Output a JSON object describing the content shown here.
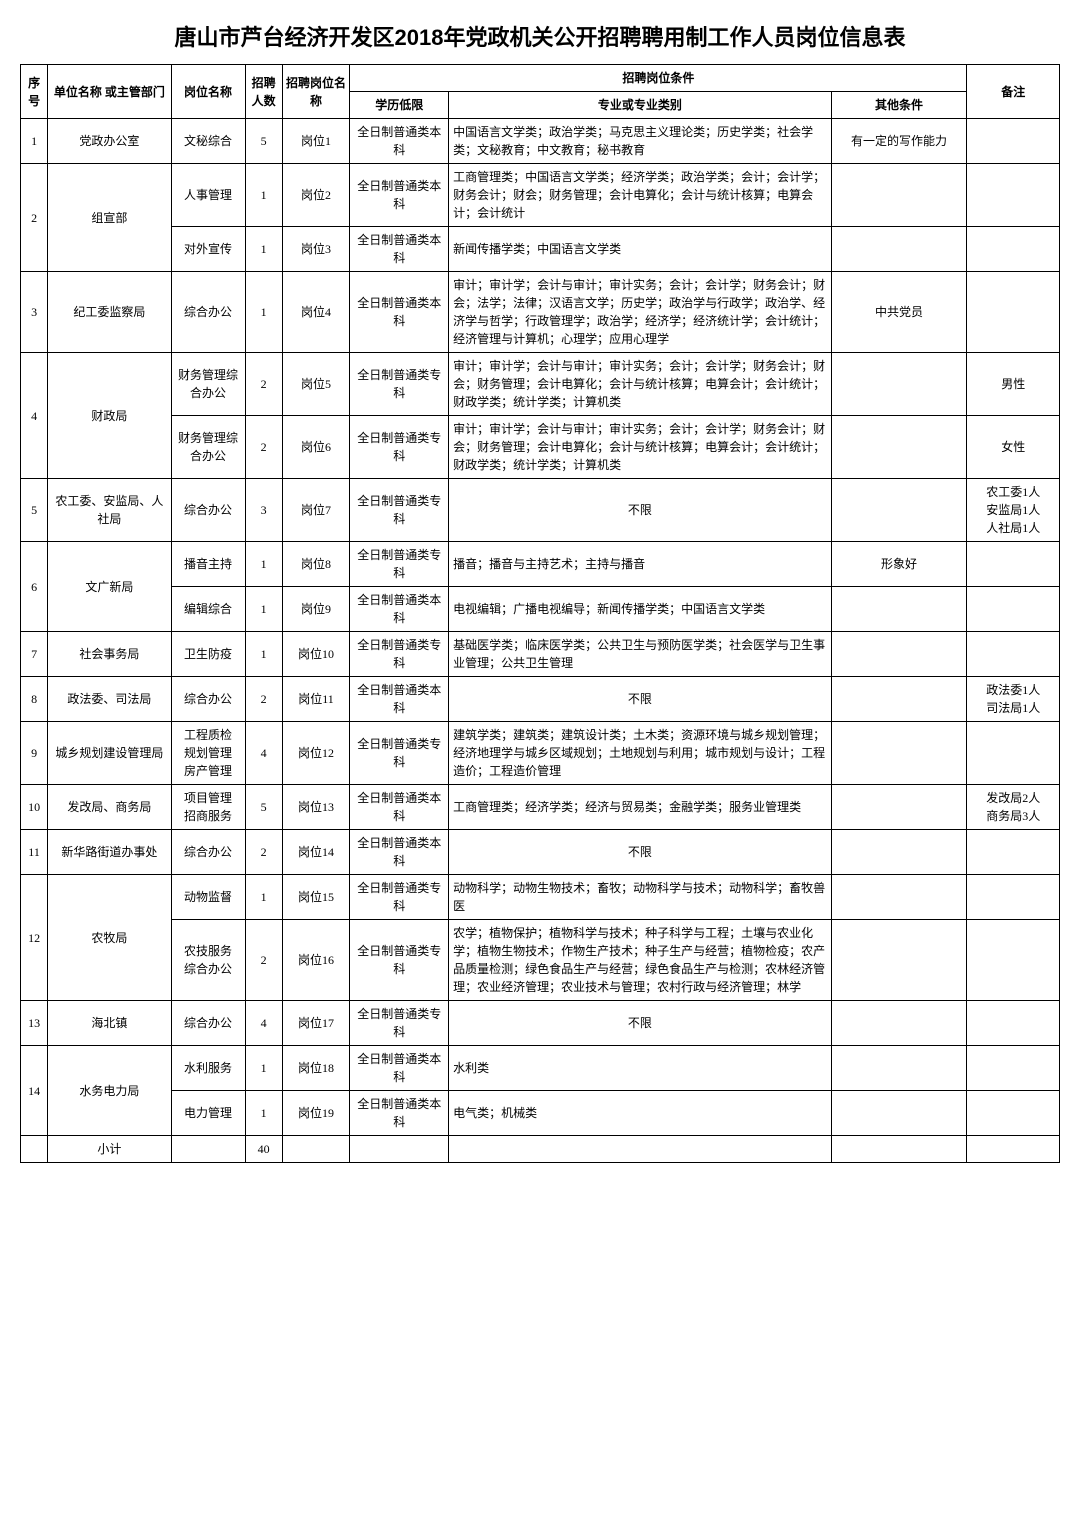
{
  "title": "唐山市芦台经济开发区2018年党政机关公开招聘聘用制工作人员岗位信息表",
  "headers": {
    "seq": "序号",
    "dept": "单位名称\n或主管部门",
    "post": "岗位名称",
    "num": "招聘人数",
    "pname": "招聘岗位名称",
    "cond": "招聘岗位条件",
    "edu": "学历低限",
    "major": "专业或专业类别",
    "other": "其他条件",
    "remark": "备注"
  },
  "rows": [
    {
      "seq": "1",
      "dept": "党政办公室",
      "post": "文秘综合",
      "num": "5",
      "pname": "岗位1",
      "edu": "全日制普通类本科",
      "major": "中国语言文学类；政治学类；马克思主义理论类；历史学类；社会学类；文秘教育；中文教育；秘书教育",
      "other": "有一定的写作能力",
      "remark": ""
    },
    {
      "seq": "2",
      "dept": "组宣部",
      "post": "人事管理",
      "num": "1",
      "pname": "岗位2",
      "edu": "全日制普通类本科",
      "major": "工商管理类；中国语言文学类；经济学类；政治学类；会计；会计学；财务会计；财会；财务管理；会计电算化；会计与统计核算；电算会计；会计统计",
      "other": "",
      "remark": "",
      "deptRowspan": 2
    },
    {
      "post": "对外宣传",
      "num": "1",
      "pname": "岗位3",
      "edu": "全日制普通类本科",
      "major": "新闻传播学类；中国语言文学类",
      "other": "",
      "remark": ""
    },
    {
      "seq": "3",
      "dept": "纪工委监察局",
      "post": "综合办公",
      "num": "1",
      "pname": "岗位4",
      "edu": "全日制普通类本科",
      "major": "审计；审计学；会计与审计；审计实务；会计；会计学；财务会计；财会；法学；法律；汉语言文学；历史学；政治学与行政学；政治学、经济学与哲学；行政管理学；政治学；经济学；经济统计学；会计统计；经济管理与计算机；心理学；应用心理学",
      "other": "中共党员",
      "remark": ""
    },
    {
      "seq": "4",
      "dept": "财政局",
      "post": "财务管理综合办公",
      "num": "2",
      "pname": "岗位5",
      "edu": "全日制普通类专科",
      "major": "审计；审计学；会计与审计；审计实务；会计；会计学；财务会计；财会；财务管理；会计电算化；会计与统计核算；电算会计；会计统计；财政学类；统计学类；计算机类",
      "other": "",
      "remark": "男性",
      "deptRowspan": 2
    },
    {
      "post": "财务管理综合办公",
      "num": "2",
      "pname": "岗位6",
      "edu": "全日制普通类专科",
      "major": "审计；审计学；会计与审计；审计实务；会计；会计学；财务会计；财会；财务管理；会计电算化；会计与统计核算；电算会计；会计统计；财政学类；统计学类；计算机类",
      "other": "",
      "remark": "女性"
    },
    {
      "seq": "5",
      "dept": "农工委、安监局、人社局",
      "post": "综合办公",
      "num": "3",
      "pname": "岗位7",
      "edu": "全日制普通类专科",
      "major": "不限",
      "other": "",
      "remark": "农工委1人\n安监局1人\n人社局1人"
    },
    {
      "seq": "6",
      "dept": "文广新局",
      "post": "播音主持",
      "num": "1",
      "pname": "岗位8",
      "edu": "全日制普通类专科",
      "major": "播音；播音与主持艺术；主持与播音",
      "other": "形象好",
      "remark": "",
      "deptRowspan": 2
    },
    {
      "post": "编辑综合",
      "num": "1",
      "pname": "岗位9",
      "edu": "全日制普通类本科",
      "major": "电视编辑；广播电视编导；新闻传播学类；中国语言文学类",
      "other": "",
      "remark": ""
    },
    {
      "seq": "7",
      "dept": "社会事务局",
      "post": "卫生防疫",
      "num": "1",
      "pname": "岗位10",
      "edu": "全日制普通类专科",
      "major": "基础医学类；临床医学类；公共卫生与预防医学类；社会医学与卫生事业管理；公共卫生管理",
      "other": "",
      "remark": ""
    },
    {
      "seq": "8",
      "dept": "政法委、司法局",
      "post": "综合办公",
      "num": "2",
      "pname": "岗位11",
      "edu": "全日制普通类本科",
      "major": "不限",
      "other": "",
      "remark": "政法委1人\n司法局1人"
    },
    {
      "seq": "9",
      "dept": "城乡规划建设管理局",
      "post": "工程质检\n规划管理\n房产管理",
      "num": "4",
      "pname": "岗位12",
      "edu": "全日制普通类专科",
      "major": "建筑学类；建筑类；建筑设计类；土木类；资源环境与城乡规划管理；经济地理学与城乡区域规划；土地规划与利用；城市规划与设计；工程造价；工程造价管理",
      "other": "",
      "remark": ""
    },
    {
      "seq": "10",
      "dept": "发改局、商务局",
      "post": "项目管理\n招商服务",
      "num": "5",
      "pname": "岗位13",
      "edu": "全日制普通类本科",
      "major": "工商管理类；经济学类；经济与贸易类；金融学类；服务业管理类",
      "other": "",
      "remark": "发改局2人\n商务局3人"
    },
    {
      "seq": "11",
      "dept": "新华路街道办事处",
      "post": "综合办公",
      "num": "2",
      "pname": "岗位14",
      "edu": "全日制普通类本科",
      "major": "不限",
      "other": "",
      "remark": ""
    },
    {
      "seq": "12",
      "dept": "农牧局",
      "post": "动物监督",
      "num": "1",
      "pname": "岗位15",
      "edu": "全日制普通类专科",
      "major": "动物科学；动物生物技术；畜牧；动物科学与技术；动物科学；畜牧兽医",
      "other": "",
      "remark": "",
      "deptRowspan": 2
    },
    {
      "post": "农技服务\n综合办公",
      "num": "2",
      "pname": "岗位16",
      "edu": "全日制普通类专科",
      "major": "农学；植物保护；植物科学与技术；种子科学与工程；土壤与农业化学；植物生物技术；作物生产技术；种子生产与经营；植物检疫；农产品质量检测；绿色食品生产与经营；绿色食品生产与检测；农林经济管理；农业经济管理；农业技术与管理；农村行政与经济管理；林学",
      "other": "",
      "remark": ""
    },
    {
      "seq": "13",
      "dept": "海北镇",
      "post": "综合办公",
      "num": "4",
      "pname": "岗位17",
      "edu": "全日制普通类专科",
      "major": "不限",
      "other": "",
      "remark": ""
    },
    {
      "seq": "14",
      "dept": "水务电力局",
      "post": "水利服务",
      "num": "1",
      "pname": "岗位18",
      "edu": "全日制普通类本科",
      "major": "水利类",
      "other": "",
      "remark": "",
      "deptRowspan": 2
    },
    {
      "post": "电力管理",
      "num": "1",
      "pname": "岗位19",
      "edu": "全日制普通类本科",
      "major": "电气类；机械类",
      "other": "",
      "remark": ""
    }
  ],
  "subtotal": {
    "label": "小计",
    "num": "40"
  }
}
